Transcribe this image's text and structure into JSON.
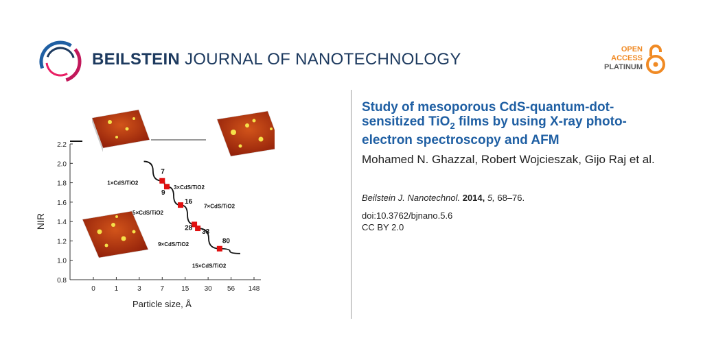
{
  "header": {
    "journal_bold": "BEILSTEIN",
    "journal_rest": " JOURNAL OF NANOTECHNOLOGY",
    "oa_lines": [
      "OPEN",
      "ACCESS",
      "PLATINUM"
    ]
  },
  "article": {
    "title_part1": "Study of mesoporous CdS-quantum-dot-sensitized TiO",
    "title_sub": "2",
    "title_part2": " films by using X-ray photo-electron spectroscopy and AFM",
    "authors": "Mohamed N. Ghazzal, Robert Wojcieszak, Gijo Raj et al.",
    "journal_abbrev": "Beilstein J. Nanotechnol.",
    "year": "2014,",
    "volume": "5,",
    "pages": "68–76.",
    "doi": "doi:10.3762/bjnano.5.6",
    "license": "CC BY 2.0"
  },
  "chart_data": {
    "type": "line",
    "xlabel": "Particle size, Å",
    "ylabel": "NIR",
    "x_ticks": [
      "0",
      "1",
      "3",
      "7",
      "15",
      "30",
      "56",
      "148"
    ],
    "y_ticks": [
      "0.8",
      "1.0",
      "1.2",
      "1.4",
      "1.6",
      "1.8",
      "2.0",
      "2.2"
    ],
    "ylim": [
      0.8,
      2.2
    ],
    "points": [
      {
        "label": "1×CdS/TiO2",
        "x_index": 3.0,
        "y": 1.82,
        "marker": "7"
      },
      {
        "label": "3×CdS/TiO2",
        "x_index": 3.2,
        "y": 1.76,
        "marker": "9"
      },
      {
        "label": "5×CdS/TiO2",
        "x_index": 3.8,
        "y": 1.57,
        "marker": "16"
      },
      {
        "label": "7×CdS/TiO2",
        "x_index": 4.4,
        "y": 1.37,
        "marker": "28"
      },
      {
        "label": "9×CdS/TiO2",
        "x_index": 4.55,
        "y": 1.33,
        "marker": "33"
      },
      {
        "label": "15×CdS/TiO2",
        "x_index": 5.5,
        "y": 1.12,
        "marker": "80"
      }
    ],
    "partial_y_tick": "2.2",
    "afm_insets": 3
  }
}
